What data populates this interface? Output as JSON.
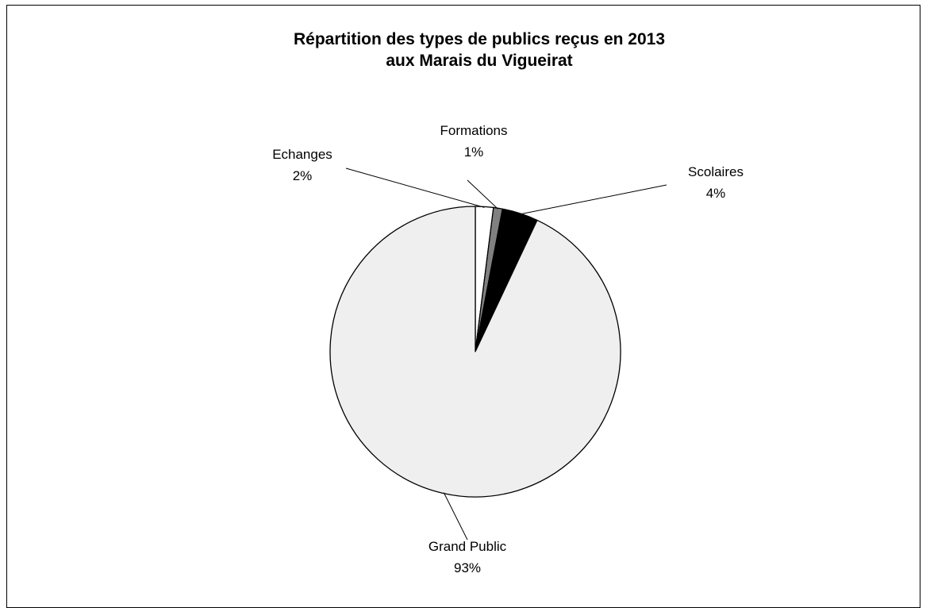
{
  "chart_data": {
    "type": "pie",
    "title": [
      "Répartition des types de publics reçus en 2013",
      "aux Marais du Vigueirat"
    ],
    "slices": [
      {
        "label": "Echanges",
        "value": 2,
        "value_label": "2%",
        "color": "#ffffff"
      },
      {
        "label": "Formations",
        "value": 1,
        "value_label": "1%",
        "color": "#808080"
      },
      {
        "label": "Scolaires",
        "value": 4,
        "value_label": "4%",
        "color": "#000000"
      },
      {
        "label": "Grand Public",
        "value": 93,
        "value_label": "93%",
        "color": "#efefef"
      }
    ],
    "legend": "none",
    "data_labels": "outside with leader lines"
  }
}
